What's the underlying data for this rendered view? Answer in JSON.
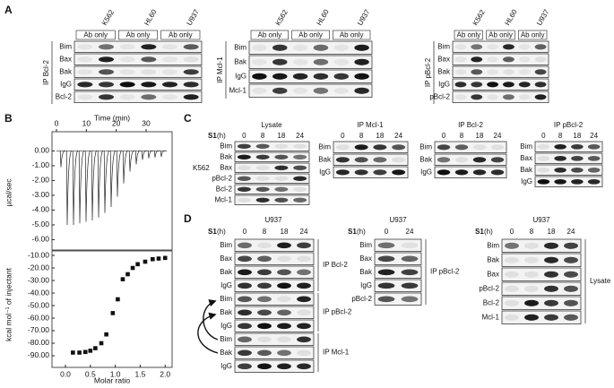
{
  "figure": {
    "panels": [
      {
        "label": "A",
        "blots": [
          {
            "ip": "IP Bcl-2",
            "cell_lines": [
              "K562",
              "HL60",
              "U937"
            ],
            "control": [
              "Ab only",
              "Ab only",
              "Ab only"
            ],
            "rows": [
              "Bim",
              "Bax",
              "Bak",
              "IgG",
              "Bcl-2"
            ]
          },
          {
            "ip": "IP Mcl-1",
            "cell_lines": [
              "K562",
              "HL60",
              "U937"
            ],
            "control": [
              "Ab only",
              "Ab only",
              "Ab only"
            ],
            "rows": [
              "Bim",
              "Bak",
              "IgG",
              "Mcl-1"
            ]
          },
          {
            "ip": "IP pBcl-2",
            "cell_lines": [
              "K562",
              "HL60",
              "U937"
            ],
            "control": [
              "Ab only",
              "Ab only",
              "Ab only"
            ],
            "rows": [
              "Bim",
              "Bax",
              "Bak",
              "IgG",
              "pBcl-2"
            ]
          }
        ]
      },
      {
        "label": "B",
        "itc": {
          "raw": {
            "x_label": "Time (min)",
            "y_label": "µcal/sec",
            "time": [
              1.5,
              3.6,
              5.7,
              7.8,
              9.9,
              12.0,
              14.1,
              16.2,
              18.3,
              20.4,
              22.5,
              24.6,
              26.7,
              28.8,
              30.9,
              33.0,
              35.1
            ],
            "peaks": [
              -1.1,
              -5.0,
              -5.0,
              -4.9,
              -4.8,
              -4.7,
              -4.5,
              -4.2,
              -3.8,
              -3.1,
              -2.2,
              -1.4,
              -0.9,
              -0.6,
              -0.5,
              -0.45,
              -0.4
            ],
            "xlim": [
              -1.5,
              38.7
            ],
            "xticks": [
              0,
              10,
              20,
              30
            ],
            "ylim": [
              -6.7,
              1.3
            ],
            "yticks": [
              {
                "value": 0,
                "label": "0.00"
              },
              {
                "value": -1,
                "label": "-1.00"
              },
              {
                "value": -2,
                "label": "-2.00"
              },
              {
                "value": -3,
                "label": "-3.00"
              },
              {
                "value": -4,
                "label": "-4.00"
              },
              {
                "value": -5,
                "label": "-5.00"
              },
              {
                "value": -6,
                "label": "-6.00"
              }
            ]
          },
          "binding": {
            "x_label": "Molar ratio",
            "y_label": "kcal mol⁻¹ of injectant",
            "x": [
              0.15,
              0.28,
              0.4,
              0.5,
              0.6,
              0.72,
              0.82,
              0.95,
              1.05,
              1.15,
              1.25,
              1.35,
              1.45,
              1.6,
              1.75,
              1.87,
              2.0
            ],
            "y": [
              -87.5,
              -87.5,
              -87,
              -86,
              -84,
              -80,
              -73,
              -56,
              -45,
              -29,
              -25,
              -20,
              -17,
              -15,
              -13,
              -12.5,
              -12
            ],
            "xlim": [
              -0.27,
              2.14
            ],
            "xticks": [
              {
                "value": 0,
                "label": "0.0"
              },
              {
                "value": 0.5,
                "label": "0.5"
              },
              {
                "value": 1,
                "label": "1.0"
              },
              {
                "value": 1.5,
                "label": "1.5"
              },
              {
                "value": 2,
                "label": "2.0"
              }
            ],
            "ylim": [
              -99.3,
              -6.4
            ],
            "yticks": [
              {
                "value": -10,
                "label": "-10.00"
              },
              {
                "value": -20,
                "label": "-20.00"
              },
              {
                "value": -30,
                "label": "-30.00"
              },
              {
                "value": -40,
                "label": "-40.00"
              },
              {
                "value": -50,
                "label": "-50.00"
              },
              {
                "value": -60,
                "label": "-60.00"
              },
              {
                "value": -70,
                "label": "-70.00"
              },
              {
                "value": -80,
                "label": "-80.00"
              },
              {
                "value": -90,
                "label": "-90.00"
              }
            ]
          }
        }
      },
      {
        "label": "C",
        "treatment": "S1",
        "unit": "(h)",
        "cell_line": "K562",
        "blots": [
          {
            "title": "Lysate",
            "timepoints": [
              0,
              8,
              18,
              24
            ],
            "rows": [
              "Bim",
              "Bak",
              "Bax",
              "pBcl-2",
              "Bcl-2",
              "Mcl-1"
            ]
          },
          {
            "title": "IP Mcl-1",
            "timepoints": [
              0,
              8,
              18,
              24
            ],
            "rows": [
              "Bim",
              "Bak",
              "IgG"
            ]
          },
          {
            "title": "IP Bcl-2",
            "timepoints": [
              0,
              8,
              18,
              24
            ],
            "rows": [
              "Bim",
              "Bak",
              "IgG"
            ]
          },
          {
            "title": "IP pBcl-2",
            "timepoints": [
              0,
              8,
              18,
              24
            ],
            "rows": [
              "Bim",
              "Bax",
              "Bak",
              "IgG"
            ]
          }
        ]
      },
      {
        "label": "D",
        "treatment": "S1",
        "unit": "(h)",
        "blots": [
          {
            "title": "U937",
            "timepoints": [
              0,
              8,
              18,
              24
            ],
            "groups": [
              {
                "ip": "IP Bcl-2",
                "rows": [
                  "Bim",
                  "Bax",
                  "Bak",
                  "IgG"
                ]
              },
              {
                "ip": "IP pBcl-2",
                "rows": [
                  "Bim",
                  "Bak",
                  "IgG"
                ]
              },
              {
                "ip": "IP Mcl-1",
                "rows": [
                  "Bim",
                  "Bak",
                  "IgG"
                ]
              }
            ]
          },
          {
            "title": "U937",
            "timepoints": [
              0,
              24
            ],
            "groups": [
              {
                "ip": "IP pBcl-2",
                "rows": [
                  "Bim",
                  "Bax",
                  "Bak",
                  "IgG",
                  "pBcl-2"
                ]
              }
            ]
          },
          {
            "title": "U937",
            "timepoints": [
              0,
              8,
              18,
              24
            ],
            "groups": [
              {
                "ip": "Lysate",
                "rows": [
                  "Bim",
                  "Bak",
                  "Bax",
                  "pBcl-2",
                  "Bcl-2",
                  "Mcl-1"
                ]
              }
            ]
          }
        ]
      }
    ]
  }
}
